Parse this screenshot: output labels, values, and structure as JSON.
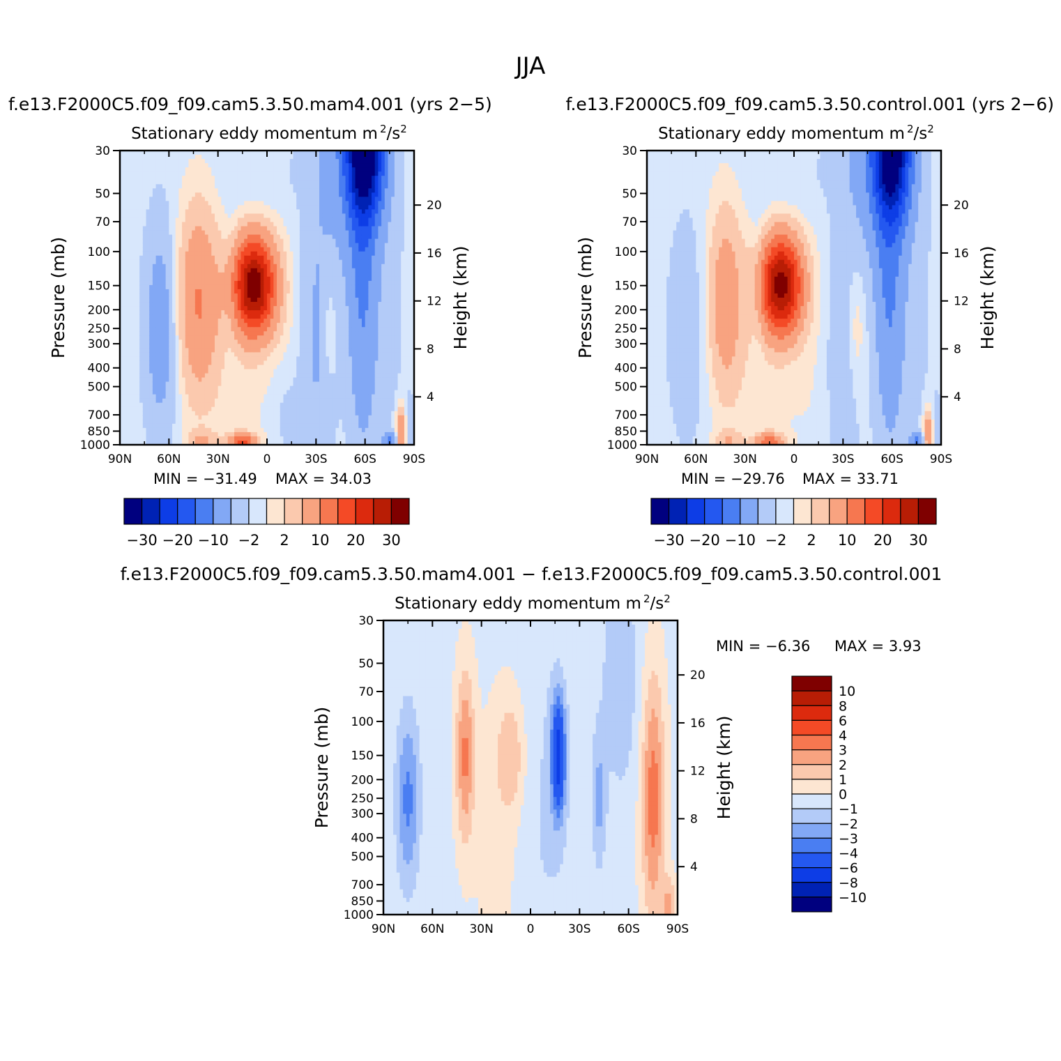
{
  "figure": {
    "title": "JJA"
  },
  "palette": {
    "main": [
      "#00007f",
      "#0022b4",
      "#0d3de6",
      "#2458f0",
      "#4a7ef2",
      "#82a8f5",
      "#b3cbf8",
      "#d8e7fc",
      "#fde6d2",
      "#fbc9ae",
      "#f8a380",
      "#f67750",
      "#f44a26",
      "#dc2a0e",
      "#b81d05",
      "#7f0000"
    ],
    "diff": [
      "#00007f",
      "#0022b4",
      "#0d3de6",
      "#2458f0",
      "#4a7ef2",
      "#82a8f5",
      "#b3cbf8",
      "#d8e7fc",
      "#fde6d2",
      "#fbc9ae",
      "#f8a380",
      "#f67750",
      "#f44a26",
      "#dc2a0e",
      "#b81d05",
      "#7f0000"
    ]
  },
  "axes": {
    "x_ticks": [
      "90N",
      "60N",
      "30N",
      "0",
      "30S",
      "60S",
      "90S"
    ],
    "x_values": [
      90,
      60,
      30,
      0,
      -30,
      -60,
      -90
    ],
    "p_ticks": [
      "30",
      "50",
      "70",
      "100",
      "150",
      "200",
      "250",
      "300",
      "400",
      "500",
      "700",
      "850",
      "1000"
    ],
    "p_values": [
      30,
      50,
      70,
      100,
      150,
      200,
      250,
      300,
      400,
      500,
      700,
      850,
      1000
    ],
    "h_ticks": [
      "20",
      "16",
      "12",
      "8",
      "4"
    ],
    "h_values": [
      20,
      16,
      12,
      8,
      4
    ],
    "ylabel": "Pressure (mb)",
    "ylabel_right": "Height (km)"
  },
  "chart_data": [
    {
      "type": "heatmap",
      "panel": "left",
      "case_title": "f.e13.F2000C5.f09_f09.cam5.3.50.mam4.001 (yrs 2−5)",
      "subtitle": "Stationary eddy momentum",
      "units_base": "m",
      "units_mid": "/s",
      "units_exp": "2",
      "min_label": "MIN = −31.49",
      "max_label": "MAX = 34.03",
      "min": -31.49,
      "max": 34.03,
      "levels": [
        -35,
        -30,
        -25,
        -20,
        -15,
        -10,
        -5,
        -2,
        0,
        2,
        5,
        10,
        15,
        20,
        25,
        30,
        35
      ],
      "colorbar_labels": [
        "−30",
        "−20",
        "−10",
        "−2",
        "2",
        "10",
        "20",
        "30"
      ],
      "colorbar_label_boundaries": [
        1,
        3,
        5,
        7,
        9,
        11,
        13,
        15
      ],
      "blobs": [
        {
          "lat": 8,
          "p": 150,
          "amp": 34,
          "slat": 9,
          "sz": 0.5
        },
        {
          "lat": -60,
          "p": 30,
          "amp": -31,
          "slat": 8,
          "sz": 0.7
        },
        {
          "lat": -58,
          "p": 150,
          "amp": -8,
          "slat": 6,
          "sz": 1.6
        },
        {
          "lat": -30,
          "p": 300,
          "amp": -5,
          "slat": 8,
          "sz": 1.4
        },
        {
          "lat": -12,
          "p": 700,
          "amp": -2.5,
          "slat": 7,
          "sz": 0.6
        },
        {
          "lat": -70,
          "p": 250,
          "amp": -2,
          "slat": 10,
          "sz": 1.8
        },
        {
          "lat": -50,
          "p": 30,
          "amp": -6,
          "slat": 15,
          "sz": 1.2
        },
        {
          "lat": 42,
          "p": 180,
          "amp": 11,
          "slat": 9,
          "sz": 1.0
        },
        {
          "lat": 65,
          "p": 250,
          "amp": -7,
          "slat": 7,
          "sz": 1.1
        },
        {
          "lat": 22,
          "p": 150,
          "amp": -1.5,
          "slat": 3,
          "sz": 0.8
        },
        {
          "lat": -15,
          "p": 300,
          "amp": 1.5,
          "slat": 12,
          "sz": 1.5
        },
        {
          "lat": -38,
          "p": 250,
          "amp": 3,
          "slat": 3,
          "sz": 0.6
        },
        {
          "lat": 20,
          "p": 500,
          "amp": 1.5,
          "slat": 15,
          "sz": 1.2
        },
        {
          "lat": 15,
          "p": 970,
          "amp": 16,
          "slat": 6,
          "sz": 0.09
        },
        {
          "lat": 40,
          "p": 950,
          "amp": 6,
          "slat": 6,
          "sz": 0.1
        },
        {
          "lat": -82,
          "p": 850,
          "amp": 12,
          "slat": 2,
          "sz": 0.25
        },
        {
          "lat": -75,
          "p": 950,
          "amp": -10,
          "slat": 3,
          "sz": 0.08
        },
        {
          "lat": -88,
          "p": 800,
          "amp": -3,
          "slat": 2,
          "sz": 0.3
        },
        {
          "lat": 0,
          "p": 40,
          "amp": -1.2,
          "slat": 20,
          "sz": 0.4
        }
      ],
      "bg": -1
    },
    {
      "type": "heatmap",
      "panel": "right",
      "case_title": "f.e13.F2000C5.f09_f09.cam5.3.50.control.001 (yrs 2−6)",
      "subtitle": "Stationary eddy momentum",
      "units_base": "m",
      "units_mid": "/s",
      "units_exp": "2",
      "min_label": "MIN = −29.76",
      "max_label": "MAX = 33.71",
      "min": -29.76,
      "max": 33.71,
      "levels": [
        -35,
        -30,
        -25,
        -20,
        -15,
        -10,
        -5,
        -2,
        0,
        2,
        5,
        10,
        15,
        20,
        25,
        30,
        35
      ],
      "colorbar_labels": [
        "−30",
        "−20",
        "−10",
        "−2",
        "2",
        "10",
        "20",
        "30"
      ],
      "colorbar_label_boundaries": [
        1,
        3,
        5,
        7,
        9,
        11,
        13,
        15
      ],
      "blobs": [
        {
          "lat": 8,
          "p": 150,
          "amp": 33,
          "slat": 9,
          "sz": 0.5
        },
        {
          "lat": -60,
          "p": 30,
          "amp": -29,
          "slat": 8,
          "sz": 0.7
        },
        {
          "lat": -58,
          "p": 150,
          "amp": -8,
          "slat": 6,
          "sz": 1.6
        },
        {
          "lat": -30,
          "p": 350,
          "amp": -4,
          "slat": 8,
          "sz": 1.3
        },
        {
          "lat": -70,
          "p": 250,
          "amp": -2,
          "slat": 10,
          "sz": 1.8
        },
        {
          "lat": -50,
          "p": 30,
          "amp": -6,
          "slat": 15,
          "sz": 1.2
        },
        {
          "lat": 42,
          "p": 180,
          "amp": 9,
          "slat": 8,
          "sz": 1.0
        },
        {
          "lat": 65,
          "p": 250,
          "amp": -3,
          "slat": 9,
          "sz": 1.2
        },
        {
          "lat": 22,
          "p": 150,
          "amp": -2,
          "slat": 3,
          "sz": 0.8
        },
        {
          "lat": -15,
          "p": 300,
          "amp": 1.2,
          "slat": 12,
          "sz": 1.5
        },
        {
          "lat": -38,
          "p": 250,
          "amp": 4,
          "slat": 4,
          "sz": 0.7
        },
        {
          "lat": 20,
          "p": 500,
          "amp": 1.5,
          "slat": 15,
          "sz": 1.2
        },
        {
          "lat": 15,
          "p": 970,
          "amp": 14,
          "slat": 6,
          "sz": 0.09
        },
        {
          "lat": 40,
          "p": 950,
          "amp": 5,
          "slat": 6,
          "sz": 0.1
        },
        {
          "lat": -82,
          "p": 850,
          "amp": 10,
          "slat": 2,
          "sz": 0.25
        },
        {
          "lat": -75,
          "p": 950,
          "amp": -9,
          "slat": 3,
          "sz": 0.08
        },
        {
          "lat": -88,
          "p": 800,
          "amp": -3,
          "slat": 2,
          "sz": 0.3
        },
        {
          "lat": 0,
          "p": 40,
          "amp": -1.2,
          "slat": 20,
          "sz": 0.4
        }
      ],
      "bg": -1
    },
    {
      "type": "heatmap",
      "panel": "diff",
      "case_title": "f.e13.F2000C5.f09_f09.cam5.3.50.mam4.001 − f.e13.F2000C5.f09_f09.cam5.3.50.control.001",
      "subtitle": "Stationary eddy momentum",
      "units_base": "m",
      "units_mid": "/s",
      "units_exp": "2",
      "min_label": "MIN = −6.36",
      "max_label": "MAX = 3.93",
      "min": -6.36,
      "max": 3.93,
      "levels": [
        -12,
        -10,
        -8,
        -6,
        -4,
        -3,
        -2,
        -1,
        0,
        1,
        2,
        3,
        4,
        6,
        8,
        10,
        12
      ],
      "colorbar_labels": [
        "10",
        "8",
        "6",
        "4",
        "3",
        "2",
        "1",
        "0",
        "−1",
        "−2",
        "−3",
        "−4",
        "−6",
        "−8",
        "−10"
      ],
      "blobs": [
        {
          "lat": 40,
          "p": 150,
          "amp": 3.5,
          "slat": 4,
          "sz": 0.9
        },
        {
          "lat": -75,
          "p": 250,
          "amp": 3.9,
          "slat": 5,
          "sz": 1.3
        },
        {
          "lat": -17,
          "p": 150,
          "amp": -6.3,
          "slat": 3,
          "sz": 0.6
        },
        {
          "lat": 12,
          "p": 150,
          "amp": 2,
          "slat": 6,
          "sz": 0.6
        },
        {
          "lat": 75,
          "p": 250,
          "amp": -3,
          "slat": 5,
          "sz": 0.9
        },
        {
          "lat": -42,
          "p": 250,
          "amp": -2,
          "slat": 3,
          "sz": 0.7
        },
        {
          "lat": -55,
          "p": 60,
          "amp": -1.5,
          "slat": 8,
          "sz": 1.2
        },
        {
          "lat": -10,
          "p": 300,
          "amp": -0.8,
          "slat": 12,
          "sz": 1.8
        },
        {
          "lat": 20,
          "p": 400,
          "amp": 0.7,
          "slat": 10,
          "sz": 1.6
        },
        {
          "lat": -85,
          "p": 900,
          "amp": 2.5,
          "slat": 3,
          "sz": 0.3
        }
      ],
      "bg": -0.3
    }
  ]
}
